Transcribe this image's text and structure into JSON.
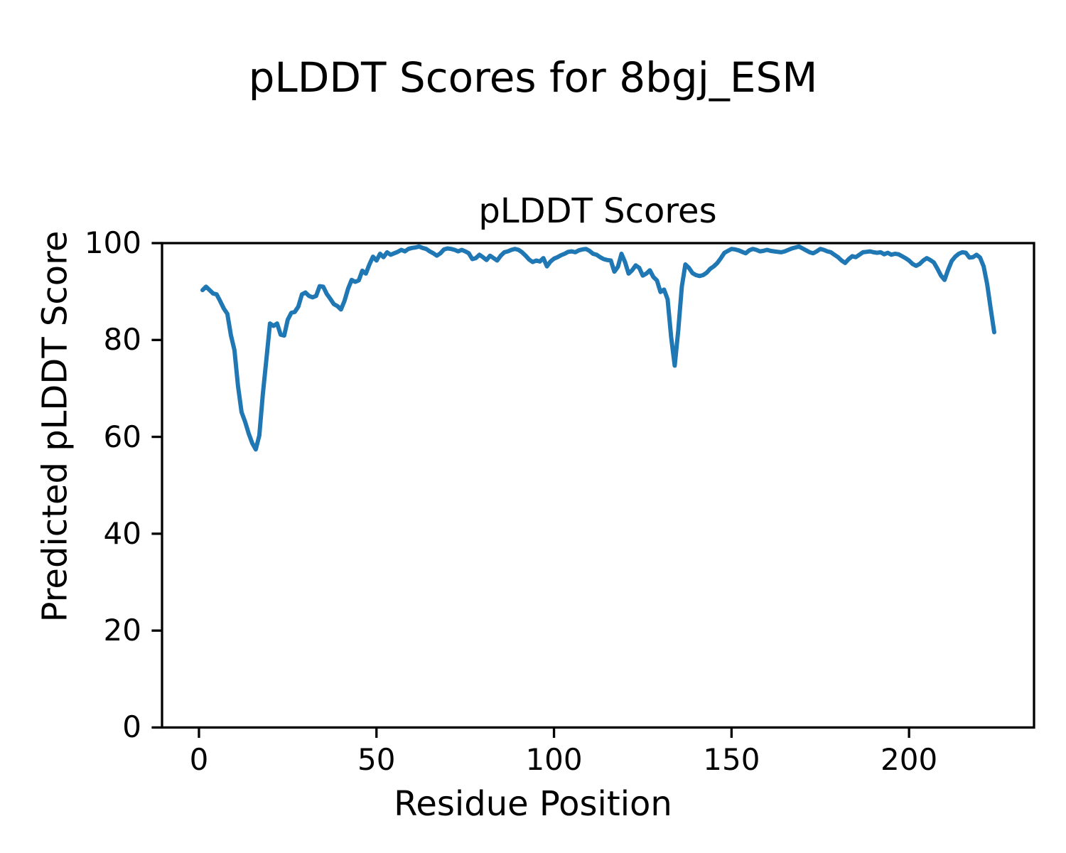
{
  "chart_data": {
    "type": "line",
    "suptitle": "pLDDT Scores for 8bgj_ESM",
    "title": "pLDDT Scores",
    "xlabel": "Residue Position",
    "ylabel": "Predicted pLDDT Score",
    "xticks": [
      0,
      50,
      100,
      150,
      200
    ],
    "yticks": [
      0,
      20,
      40,
      60,
      80,
      100
    ],
    "xlim": [
      -10.4,
      235.2
    ],
    "ylim": [
      0,
      100
    ],
    "grid": false,
    "legend": null,
    "line_color": "#1f77b4",
    "line_width": 6,
    "frame_color": "#000000",
    "background_color": "#ffffff",
    "series": [
      {
        "name": "pLDDT",
        "x_start": 1,
        "values": [
          90.3,
          91.0,
          90.3,
          89.6,
          89.4,
          88.0,
          86.5,
          85.4,
          81.0,
          77.9,
          70.5,
          65.1,
          63.1,
          60.7,
          58.7,
          57.4,
          60.3,
          68.9,
          76.1,
          83.4,
          82.9,
          83.4,
          81.1,
          80.9,
          84.2,
          85.6,
          85.8,
          86.9,
          89.4,
          89.8,
          89.1,
          88.8,
          89.1,
          91.1,
          91.0,
          89.5,
          88.5,
          87.4,
          87.0,
          86.3,
          88.1,
          90.6,
          92.4,
          92.0,
          92.3,
          94.3,
          93.7,
          95.6,
          97.2,
          96.4,
          97.8,
          97.1,
          98.1,
          97.6,
          97.9,
          98.2,
          98.6,
          98.3,
          98.8,
          99.0,
          99.1,
          99.3,
          99.0,
          98.8,
          98.3,
          97.9,
          97.4,
          97.9,
          98.7,
          98.9,
          98.8,
          98.6,
          98.3,
          98.6,
          98.3,
          97.9,
          96.7,
          96.9,
          97.6,
          97.1,
          96.5,
          97.4,
          96.9,
          96.4,
          97.4,
          98.1,
          98.3,
          98.6,
          98.8,
          98.6,
          98.1,
          97.4,
          96.6,
          96.1,
          96.4,
          96.2,
          96.9,
          95.2,
          96.2,
          96.8,
          97.1,
          97.5,
          97.8,
          98.2,
          98.3,
          98.1,
          98.5,
          98.7,
          98.8,
          98.4,
          97.8,
          97.6,
          97.1,
          96.7,
          96.5,
          96.4,
          94.1,
          95.1,
          97.8,
          96.1,
          93.7,
          94.4,
          95.4,
          94.9,
          93.3,
          93.7,
          94.4,
          93.0,
          92.3,
          89.9,
          90.4,
          88.4,
          80.6,
          74.7,
          82.0,
          91.0,
          95.6,
          94.9,
          93.8,
          93.4,
          93.2,
          93.4,
          93.9,
          94.7,
          95.2,
          95.9,
          96.9,
          98.0,
          98.4,
          98.8,
          98.7,
          98.5,
          98.2,
          97.9,
          98.5,
          98.8,
          98.6,
          98.3,
          98.4,
          98.6,
          98.4,
          98.3,
          98.2,
          98.1,
          98.3,
          98.6,
          98.9,
          99.1,
          99.3,
          98.9,
          98.5,
          98.1,
          97.9,
          98.3,
          98.8,
          98.6,
          98.3,
          98.1,
          97.6,
          97.1,
          96.4,
          95.9,
          96.7,
          97.3,
          97.1,
          97.6,
          98.1,
          98.2,
          98.3,
          98.1,
          98.0,
          98.1,
          97.7,
          98.0,
          97.6,
          97.8,
          97.7,
          97.3,
          96.9,
          96.4,
          95.7,
          95.3,
          95.7,
          96.4,
          96.9,
          96.5,
          96.0,
          94.7,
          93.3,
          92.4,
          94.5,
          96.3,
          97.2,
          97.8,
          98.1,
          98.0,
          97.0,
          97.1,
          97.6,
          97.0,
          95.2,
          91.5,
          86.5,
          81.6
        ]
      }
    ]
  }
}
